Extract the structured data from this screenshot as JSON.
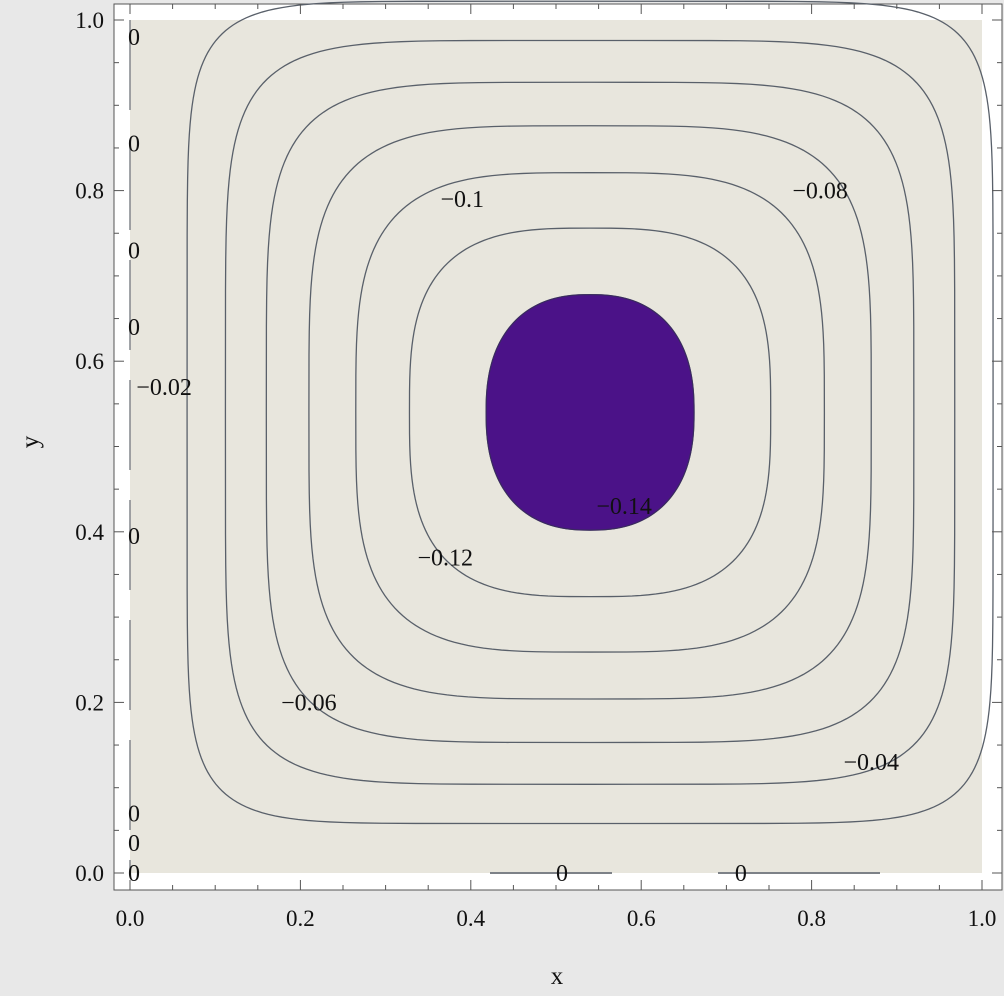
{
  "chart_data": {
    "type": "contour",
    "xlabel": "x",
    "ylabel": "y",
    "xlim": [
      0.0,
      1.0
    ],
    "ylim": [
      0.0,
      1.0
    ],
    "xticks": [
      "0.0",
      "0.2",
      "0.4",
      "0.6",
      "0.8",
      "1.0"
    ],
    "yticks": [
      "0.0",
      "0.2",
      "0.4",
      "0.6",
      "0.8",
      "1.0"
    ],
    "grid": false,
    "minimum": {
      "x": 0.54,
      "y": 0.54
    },
    "levels": [
      {
        "value": -0.02,
        "label": "−0.02",
        "color": "#dde0e2",
        "half_width": 0.473,
        "half_height": 0.482,
        "power": 8
      },
      {
        "value": -0.04,
        "label": "−0.04",
        "color": "#cbd8e6",
        "half_width": 0.428,
        "half_height": 0.436,
        "power": 6
      },
      {
        "value": -0.06,
        "label": "−0.06",
        "color": "#bcd2e8",
        "half_width": 0.38,
        "half_height": 0.387,
        "power": 5
      },
      {
        "value": -0.08,
        "label": "−0.08",
        "color": "#a8b2e8",
        "half_width": 0.33,
        "half_height": 0.336,
        "power": 4.2
      },
      {
        "value": -0.1,
        "label": "−0.1",
        "color": "#9790e6",
        "half_width": 0.275,
        "half_height": 0.281,
        "power": 3.6
      },
      {
        "value": -0.12,
        "label": "−0.12",
        "color": "#7c66d0",
        "half_width": 0.212,
        "half_height": 0.216,
        "power": 3.1
      },
      {
        "value": -0.14,
        "label": "−0.14",
        "color": "#6038a8",
        "half_width": 0.122,
        "half_height": 0.138,
        "power": 2.4
      }
    ],
    "core_color": "#4b1288",
    "background_color": "#e8e6dd",
    "labels": [
      {
        "text": "−0.1",
        "x": 0.39,
        "y": 0.79
      },
      {
        "text": "−0.08",
        "x": 0.81,
        "y": 0.8
      },
      {
        "text": "−0.02",
        "x": 0.04,
        "y": 0.57
      },
      {
        "text": "−0.14",
        "x": 0.58,
        "y": 0.43
      },
      {
        "text": "−0.12",
        "x": 0.37,
        "y": 0.37
      },
      {
        "text": "−0.06",
        "x": 0.21,
        "y": 0.2
      },
      {
        "text": "−0.04",
        "x": 0.87,
        "y": 0.13
      },
      {
        "text": "0",
        "x": 0.0,
        "y": 0.98
      },
      {
        "text": "0",
        "x": 0.0,
        "y": 0.855
      },
      {
        "text": "0",
        "x": 0.0,
        "y": 0.73
      },
      {
        "text": "0",
        "x": 0.0,
        "y": 0.64
      },
      {
        "text": "0",
        "x": 0.0,
        "y": 0.395
      },
      {
        "text": "0",
        "x": 0.0,
        "y": 0.07
      },
      {
        "text": "0",
        "x": 0.0,
        "y": 0.035
      },
      {
        "text": "0",
        "x": 0.0,
        "y": 0.0
      },
      {
        "text": "0",
        "x": 0.5,
        "y": 0.0
      },
      {
        "text": "0",
        "x": 0.71,
        "y": 0.0
      }
    ]
  }
}
